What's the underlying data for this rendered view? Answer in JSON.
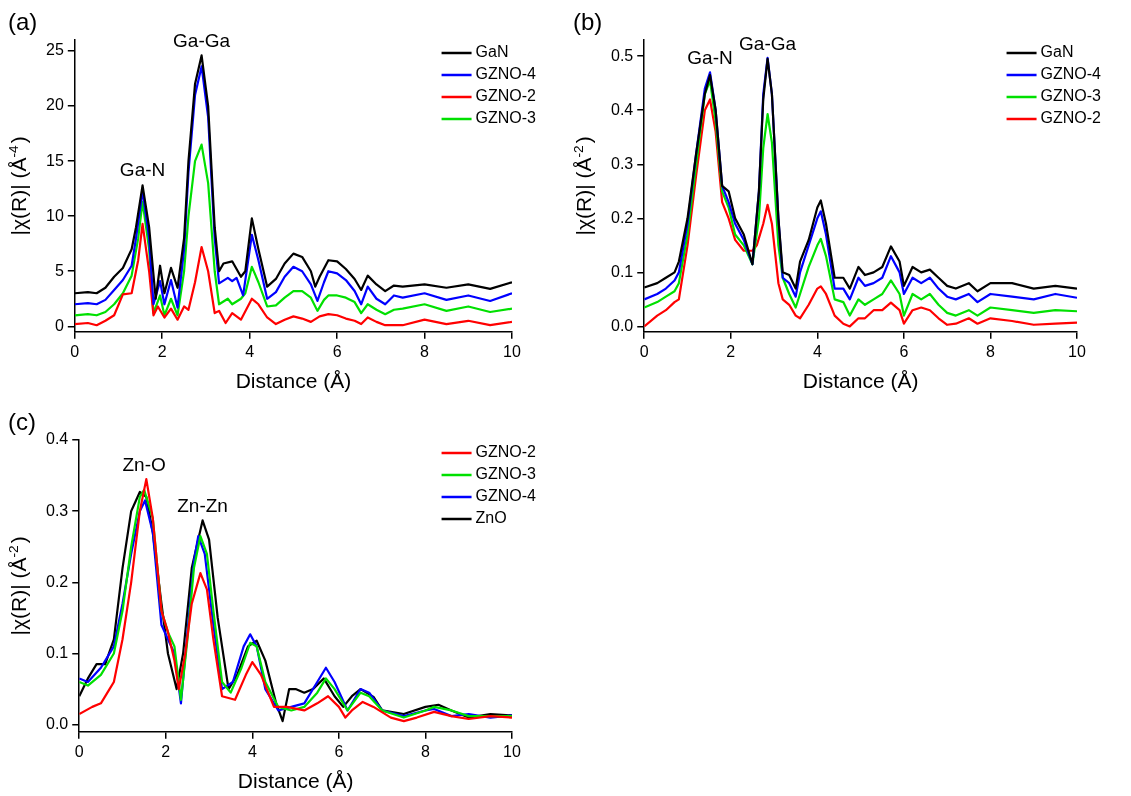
{
  "chart_data": [
    {
      "type": "line",
      "title": "(a)",
      "xlabel": "Distance (Å)",
      "ylabel": "|χ(R)| (Å$^{-4}$)",
      "xlim": [
        0,
        10
      ],
      "xticks": [
        0,
        2,
        4,
        6,
        8,
        10
      ],
      "ylim": [
        -0.5,
        26
      ],
      "yticks": [
        0,
        5,
        10,
        15,
        20,
        25
      ],
      "legend": "top right",
      "marker": "none",
      "annotations": [
        {
          "text": "Ga-N",
          "x": 1.55,
          "y": 12.9
        },
        {
          "text": "Ga-Ga",
          "x": 2.9,
          "y": 24.6
        }
      ],
      "series": [
        {
          "name": "GaN",
          "color": "#000000",
          "x": [
            0,
            0.3,
            0.5,
            0.7,
            0.9,
            1.1,
            1.3,
            1.4,
            1.55,
            1.7,
            1.85,
            1.95,
            2.05,
            2.2,
            2.35,
            2.5,
            2.6,
            2.75,
            2.9,
            3.05,
            3.2,
            3.3,
            3.4,
            3.6,
            3.8,
            3.9,
            4.05,
            4.2,
            4.4,
            4.6,
            4.8,
            5.0,
            5.2,
            5.4,
            5.5,
            5.6,
            5.8,
            6.0,
            6.2,
            6.4,
            6.55,
            6.7,
            6.9,
            7.1,
            7.3,
            7.5,
            8.0,
            8.5,
            9.0,
            9.5,
            10
          ],
          "values": [
            3.0,
            3.1,
            3.0,
            3.5,
            4.5,
            5.3,
            7.0,
            9,
            12.8,
            9,
            2.5,
            5.5,
            3.0,
            5.3,
            3.5,
            8,
            15,
            22,
            24.6,
            20,
            9,
            5.0,
            5.7,
            5.9,
            4.5,
            5,
            9.8,
            7,
            3.6,
            4.3,
            5.7,
            6.6,
            6.3,
            5,
            3.6,
            4.5,
            6.0,
            5.9,
            5.2,
            4.3,
            3.3,
            4.6,
            3.8,
            3.2,
            3.7,
            3.6,
            3.8,
            3.5,
            3.8,
            3.4,
            4.0
          ]
        },
        {
          "name": "GZNO-4",
          "color": "#0000ff",
          "x": [
            0,
            0.3,
            0.5,
            0.7,
            0.9,
            1.1,
            1.3,
            1.4,
            1.55,
            1.7,
            1.8,
            1.95,
            2.05,
            2.2,
            2.35,
            2.5,
            2.6,
            2.75,
            2.9,
            3.05,
            3.2,
            3.3,
            3.5,
            3.6,
            3.7,
            3.85,
            4.05,
            4.2,
            4.4,
            4.6,
            4.8,
            5.0,
            5.2,
            5.4,
            5.55,
            5.7,
            5.8,
            6.0,
            6.2,
            6.4,
            6.55,
            6.7,
            6.9,
            7.1,
            7.3,
            7.5,
            8.0,
            8.5,
            9.0,
            9.5,
            10
          ],
          "values": [
            2.0,
            2.1,
            2.0,
            2.4,
            3.3,
            4.2,
            5.5,
            8,
            12.3,
            8,
            2.0,
            4.1,
            2.0,
            4.2,
            1.7,
            7,
            14,
            21,
            23.6,
            19,
            8,
            3.9,
            4.4,
            4.1,
            4.4,
            2.8,
            8.3,
            6,
            2.5,
            3.1,
            4.5,
            5.4,
            5,
            3.8,
            2.3,
            4.0,
            5.0,
            4.8,
            4.2,
            3.2,
            2.0,
            3.6,
            2.5,
            2.0,
            2.8,
            2.6,
            3.0,
            2.4,
            2.8,
            2.3,
            3.0
          ]
        },
        {
          "name": "GZNO-2",
          "color": "#ff0000",
          "x": [
            0,
            0.3,
            0.5,
            0.7,
            0.9,
            1.1,
            1.3,
            1.45,
            1.55,
            1.7,
            1.8,
            1.9,
            2.05,
            2.2,
            2.35,
            2.5,
            2.6,
            2.75,
            2.9,
            3.05,
            3.2,
            3.3,
            3.45,
            3.6,
            3.8,
            4.05,
            4.2,
            4.4,
            4.6,
            4.8,
            5.0,
            5.2,
            5.4,
            5.6,
            5.8,
            6.0,
            6.2,
            6.4,
            6.55,
            6.7,
            6.9,
            7.1,
            7.5,
            8.0,
            8.5,
            9.0,
            9.5,
            10
          ],
          "values": [
            0.2,
            0.3,
            0.1,
            0.5,
            1.0,
            2.9,
            3.0,
            6,
            9.3,
            5,
            1.0,
            1.8,
            0.8,
            1.6,
            0.6,
            1.8,
            1.5,
            4,
            7.2,
            5,
            1.2,
            1.4,
            0.3,
            1.2,
            0.6,
            2.5,
            2.0,
            0.8,
            0.2,
            0.6,
            0.9,
            0.7,
            0.4,
            0.9,
            1.1,
            1.0,
            0.7,
            0.5,
            0.2,
            0.8,
            0.4,
            0.1,
            0.1,
            0.6,
            0.2,
            0.5,
            0.1,
            0.4
          ]
        },
        {
          "name": "GZNO-3",
          "color": "#00e000",
          "x": [
            0,
            0.3,
            0.5,
            0.7,
            0.9,
            1.1,
            1.3,
            1.45,
            1.55,
            1.7,
            1.8,
            1.95,
            2.05,
            2.2,
            2.35,
            2.5,
            2.6,
            2.75,
            2.9,
            3.05,
            3.2,
            3.3,
            3.5,
            3.6,
            3.8,
            3.9,
            4.05,
            4.2,
            4.4,
            4.6,
            4.8,
            5.0,
            5.2,
            5.4,
            5.55,
            5.7,
            5.8,
            6.0,
            6.2,
            6.4,
            6.55,
            6.7,
            6.9,
            7.1,
            7.3,
            7.5,
            8.0,
            8.5,
            9.0,
            9.5,
            10
          ],
          "values": [
            1.0,
            1.1,
            1.0,
            1.3,
            2.0,
            3.0,
            4.6,
            8,
            11.3,
            7,
            1.2,
            2.8,
            1.0,
            2.5,
            1.0,
            5,
            10,
            15,
            16.5,
            13,
            5,
            2.0,
            2.5,
            2.0,
            2.5,
            3,
            5.4,
            4,
            1.8,
            1.9,
            2.6,
            3.2,
            3.2,
            2.6,
            1.4,
            2.4,
            2.8,
            2.8,
            2.6,
            2.2,
            1.2,
            2.0,
            1.5,
            1.1,
            1.5,
            1.6,
            2.0,
            1.4,
            1.8,
            1.3,
            1.6
          ]
        }
      ]
    },
    {
      "type": "line",
      "title": "(b)",
      "xlabel": "Distance (Å)",
      "ylabel": "|χ(R)| (Å$^{-2}$)",
      "xlim": [
        0,
        10
      ],
      "xticks": [
        0,
        2,
        4,
        6,
        8,
        10
      ],
      "ylim": [
        -0.01,
        0.53
      ],
      "yticks": [
        {
          "value": 0,
          "label": "0.0"
        },
        0.1,
        0.2,
        0.3,
        0.4,
        0.5
      ],
      "legend": "top right",
      "marker": "none",
      "annotations": [
        {
          "text": "Ga-N",
          "x": 1.52,
          "y": 0.47
        },
        {
          "text": "Ga-Ga",
          "x": 2.85,
          "y": 0.497
        }
      ],
      "series": [
        {
          "name": "GaN",
          "color": "#000000",
          "x": [
            0,
            0.3,
            0.5,
            0.7,
            0.8,
            1.0,
            1.2,
            1.4,
            1.52,
            1.65,
            1.8,
            1.95,
            2.1,
            2.3,
            2.5,
            2.65,
            2.75,
            2.85,
            2.95,
            3.1,
            3.2,
            3.35,
            3.5,
            3.6,
            3.8,
            4.0,
            4.08,
            4.2,
            4.4,
            4.6,
            4.75,
            4.95,
            5.1,
            5.3,
            5.5,
            5.7,
            5.9,
            6.0,
            6.2,
            6.4,
            6.6,
            6.8,
            7.0,
            7.2,
            7.5,
            7.7,
            8.0,
            8.5,
            9.0,
            9.5,
            10
          ],
          "values": [
            0.072,
            0.08,
            0.09,
            0.1,
            0.12,
            0.2,
            0.32,
            0.43,
            0.465,
            0.4,
            0.26,
            0.25,
            0.2,
            0.17,
            0.115,
            0.25,
            0.42,
            0.495,
            0.43,
            0.2,
            0.1,
            0.095,
            0.07,
            0.12,
            0.16,
            0.22,
            0.233,
            0.19,
            0.09,
            0.09,
            0.07,
            0.11,
            0.095,
            0.1,
            0.11,
            0.148,
            0.12,
            0.075,
            0.11,
            0.1,
            0.105,
            0.09,
            0.075,
            0.07,
            0.08,
            0.065,
            0.08,
            0.08,
            0.07,
            0.075,
            0.07
          ]
        },
        {
          "name": "GZNO-4",
          "color": "#0000ff",
          "x": [
            0,
            0.3,
            0.5,
            0.7,
            0.8,
            1.0,
            1.2,
            1.4,
            1.52,
            1.65,
            1.8,
            1.95,
            2.1,
            2.3,
            2.5,
            2.65,
            2.75,
            2.85,
            2.95,
            3.1,
            3.2,
            3.35,
            3.5,
            3.6,
            3.8,
            4.0,
            4.08,
            4.2,
            4.4,
            4.6,
            4.75,
            4.95,
            5.1,
            5.3,
            5.5,
            5.7,
            5.9,
            6.0,
            6.2,
            6.4,
            6.6,
            6.8,
            7.0,
            7.2,
            7.5,
            7.7,
            8.0,
            8.5,
            9.0,
            9.5,
            10
          ],
          "values": [
            0.05,
            0.06,
            0.07,
            0.085,
            0.1,
            0.19,
            0.32,
            0.44,
            0.47,
            0.4,
            0.26,
            0.23,
            0.19,
            0.16,
            0.115,
            0.25,
            0.43,
            0.497,
            0.43,
            0.2,
            0.09,
            0.08,
            0.055,
            0.1,
            0.15,
            0.2,
            0.213,
            0.17,
            0.07,
            0.07,
            0.05,
            0.09,
            0.075,
            0.08,
            0.09,
            0.13,
            0.1,
            0.06,
            0.09,
            0.08,
            0.09,
            0.07,
            0.055,
            0.05,
            0.06,
            0.045,
            0.06,
            0.055,
            0.05,
            0.06,
            0.053
          ]
        },
        {
          "name": "GZNO-3",
          "color": "#00e000",
          "x": [
            0,
            0.3,
            0.5,
            0.7,
            0.8,
            1.0,
            1.2,
            1.4,
            1.52,
            1.65,
            1.8,
            1.95,
            2.1,
            2.3,
            2.5,
            2.65,
            2.75,
            2.85,
            2.95,
            3.1,
            3.2,
            3.35,
            3.5,
            3.6,
            3.8,
            4.0,
            4.08,
            4.2,
            4.4,
            4.6,
            4.75,
            4.95,
            5.1,
            5.3,
            5.5,
            5.7,
            5.9,
            6.0,
            6.2,
            6.4,
            6.6,
            6.8,
            7.0,
            7.2,
            7.5,
            7.7,
            8.0,
            8.5,
            9.0,
            9.5,
            10
          ],
          "values": [
            0.035,
            0.045,
            0.055,
            0.065,
            0.08,
            0.17,
            0.3,
            0.43,
            0.455,
            0.38,
            0.25,
            0.22,
            0.17,
            0.15,
            0.115,
            0.2,
            0.33,
            0.393,
            0.34,
            0.15,
            0.09,
            0.06,
            0.035,
            0.06,
            0.11,
            0.15,
            0.162,
            0.13,
            0.05,
            0.045,
            0.02,
            0.05,
            0.04,
            0.05,
            0.06,
            0.085,
            0.06,
            0.02,
            0.06,
            0.05,
            0.06,
            0.04,
            0.025,
            0.02,
            0.03,
            0.02,
            0.035,
            0.03,
            0.025,
            0.03,
            0.028
          ]
        },
        {
          "name": "GZNO-2",
          "color": "#ff0000",
          "x": [
            0,
            0.3,
            0.5,
            0.7,
            0.8,
            1.0,
            1.2,
            1.4,
            1.52,
            1.65,
            1.8,
            1.95,
            2.1,
            2.3,
            2.5,
            2.6,
            2.75,
            2.85,
            2.95,
            3.1,
            3.2,
            3.35,
            3.5,
            3.6,
            3.8,
            4.0,
            4.08,
            4.2,
            4.4,
            4.6,
            4.75,
            4.95,
            5.1,
            5.3,
            5.5,
            5.7,
            5.9,
            6.0,
            6.2,
            6.4,
            6.6,
            6.8,
            7.0,
            7.2,
            7.5,
            7.7,
            8.0,
            8.5,
            9.0,
            9.5,
            10
          ],
          "values": [
            0.0,
            0.02,
            0.03,
            0.045,
            0.05,
            0.15,
            0.28,
            0.4,
            0.42,
            0.36,
            0.23,
            0.2,
            0.16,
            0.14,
            0.14,
            0.15,
            0.19,
            0.225,
            0.19,
            0.08,
            0.05,
            0.04,
            0.02,
            0.015,
            0.04,
            0.07,
            0.074,
            0.06,
            0.02,
            0.005,
            0.0,
            0.015,
            0.015,
            0.03,
            0.03,
            0.044,
            0.03,
            0.005,
            0.03,
            0.035,
            0.03,
            0.015,
            0.003,
            0.005,
            0.015,
            0.005,
            0.015,
            0.01,
            0.003,
            0.005,
            0.007
          ]
        }
      ]
    },
    {
      "type": "line",
      "title": "(c)",
      "xlabel": "Distance (Å)",
      "ylabel": "|χ(R)| (Å$^{-2}$)",
      "xlim": [
        0,
        10
      ],
      "xticks": [
        0,
        2,
        4,
        6,
        8,
        10
      ],
      "ylim": [
        -0.01,
        0.4
      ],
      "yticks": [
        {
          "value": 0,
          "label": "0.0"
        },
        0.1,
        0.2,
        0.3,
        0.4
      ],
      "legend": "top right",
      "marker": "none",
      "annotations": [
        {
          "text": "Zn-O",
          "x": 1.5,
          "y": 0.345
        },
        {
          "text": "Zn-Zn",
          "x": 2.85,
          "y": 0.287
        }
      ],
      "series": [
        {
          "name": "GZNO-2",
          "color": "#ff0000",
          "x": [
            0,
            0.3,
            0.5,
            0.7,
            0.8,
            1.0,
            1.2,
            1.4,
            1.55,
            1.7,
            1.9,
            2.05,
            2.2,
            2.3,
            2.45,
            2.6,
            2.8,
            2.95,
            3.1,
            3.3,
            3.6,
            3.85,
            4.0,
            4.2,
            4.5,
            4.8,
            5.2,
            5.5,
            5.75,
            6.0,
            6.15,
            6.3,
            6.55,
            6.8,
            7.2,
            7.5,
            7.8,
            8.2,
            8.6,
            9.0,
            9.5,
            10
          ],
          "values": [
            0.015,
            0.025,
            0.03,
            0.05,
            0.06,
            0.12,
            0.2,
            0.3,
            0.345,
            0.29,
            0.16,
            0.13,
            0.09,
            0.05,
            0.1,
            0.17,
            0.213,
            0.19,
            0.12,
            0.04,
            0.035,
            0.07,
            0.088,
            0.07,
            0.025,
            0.025,
            0.02,
            0.03,
            0.04,
            0.025,
            0.01,
            0.02,
            0.032,
            0.025,
            0.01,
            0.005,
            0.01,
            0.018,
            0.012,
            0.008,
            0.012,
            0.01
          ]
        },
        {
          "name": "GZNO-3",
          "color": "#00e000",
          "x": [
            0,
            0.2,
            0.5,
            0.8,
            1.0,
            1.2,
            1.4,
            1.5,
            1.7,
            1.9,
            2.05,
            2.2,
            2.35,
            2.5,
            2.65,
            2.8,
            2.95,
            3.1,
            3.3,
            3.5,
            3.75,
            3.95,
            4.1,
            4.3,
            4.6,
            4.9,
            5.2,
            5.5,
            5.7,
            5.9,
            6.2,
            6.5,
            6.7,
            7.0,
            7.5,
            8.0,
            8.2,
            8.6,
            9.0,
            9.5,
            10
          ],
          "values": [
            0.06,
            0.055,
            0.07,
            0.1,
            0.16,
            0.25,
            0.32,
            0.33,
            0.29,
            0.16,
            0.13,
            0.11,
            0.035,
            0.12,
            0.22,
            0.265,
            0.24,
            0.16,
            0.06,
            0.045,
            0.08,
            0.115,
            0.11,
            0.06,
            0.025,
            0.02,
            0.025,
            0.045,
            0.065,
            0.05,
            0.02,
            0.045,
            0.04,
            0.02,
            0.01,
            0.02,
            0.025,
            0.02,
            0.012,
            0.012,
            0.012
          ]
        },
        {
          "name": "GZNO-4",
          "color": "#0000ff",
          "x": [
            0,
            0.2,
            0.5,
            0.8,
            1.0,
            1.2,
            1.4,
            1.52,
            1.7,
            1.9,
            2.05,
            2.2,
            2.35,
            2.5,
            2.65,
            2.75,
            2.9,
            3.1,
            3.3,
            3.55,
            3.8,
            3.95,
            4.1,
            4.3,
            4.6,
            4.9,
            5.2,
            5.5,
            5.7,
            5.9,
            6.2,
            6.5,
            6.7,
            7.0,
            7.5,
            8.0,
            8.2,
            8.6,
            9.0,
            9.5,
            10
          ],
          "values": [
            0.065,
            0.06,
            0.08,
            0.11,
            0.17,
            0.24,
            0.3,
            0.315,
            0.27,
            0.14,
            0.12,
            0.1,
            0.03,
            0.13,
            0.23,
            0.265,
            0.24,
            0.14,
            0.05,
            0.06,
            0.11,
            0.127,
            0.11,
            0.05,
            0.02,
            0.025,
            0.03,
            0.06,
            0.08,
            0.06,
            0.02,
            0.05,
            0.045,
            0.02,
            0.012,
            0.02,
            0.022,
            0.012,
            0.015,
            0.01,
            0.013
          ]
        },
        {
          "name": "ZnO",
          "color": "#000000",
          "x": [
            0,
            0.2,
            0.4,
            0.6,
            0.8,
            1.0,
            1.2,
            1.4,
            1.55,
            1.7,
            1.9,
            2.05,
            2.25,
            2.4,
            2.6,
            2.85,
            3.0,
            3.2,
            3.45,
            3.65,
            3.9,
            4.1,
            4.3,
            4.55,
            4.7,
            4.85,
            5.0,
            5.2,
            5.4,
            5.65,
            5.9,
            6.1,
            6.3,
            6.5,
            6.8,
            7.0,
            7.5,
            8.0,
            8.3,
            8.6,
            9.0,
            9.5,
            10
          ],
          "values": [
            0.04,
            0.065,
            0.085,
            0.085,
            0.12,
            0.22,
            0.3,
            0.327,
            0.32,
            0.27,
            0.17,
            0.1,
            0.05,
            0.1,
            0.22,
            0.287,
            0.26,
            0.15,
            0.05,
            0.07,
            0.11,
            0.118,
            0.09,
            0.03,
            0.005,
            0.05,
            0.05,
            0.045,
            0.05,
            0.065,
            0.04,
            0.025,
            0.04,
            0.05,
            0.039,
            0.02,
            0.015,
            0.025,
            0.028,
            0.02,
            0.01,
            0.015,
            0.013
          ]
        }
      ]
    }
  ]
}
